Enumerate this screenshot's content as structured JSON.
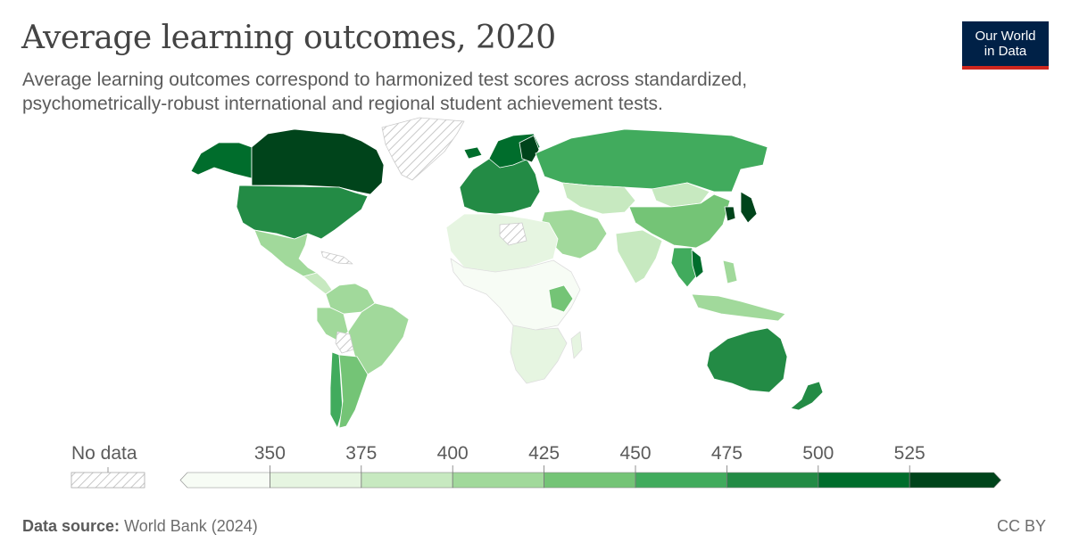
{
  "header": {
    "title": "Average learning outcomes, 2020",
    "subtitle": "Average learning outcomes correspond to harmonized test scores across standardized, psychometrically-robust international and regional student achievement tests."
  },
  "logo": {
    "line1": "Our World",
    "line2": "in Data"
  },
  "legend": {
    "no_data_label": "No data",
    "ticks": [
      "350",
      "375",
      "400",
      "425",
      "450",
      "475",
      "500",
      "525"
    ],
    "bins": [
      {
        "range": "<350",
        "color": "#f7fcf5"
      },
      {
        "range": "350-375",
        "color": "#e6f5e1"
      },
      {
        "range": "375-400",
        "color": "#c7e9c0"
      },
      {
        "range": "400-425",
        "color": "#a1d99b"
      },
      {
        "range": "425-450",
        "color": "#74c476"
      },
      {
        "range": "450-475",
        "color": "#41ab5d"
      },
      {
        "range": "475-500",
        "color": "#238b45"
      },
      {
        "range": "500-525",
        "color": "#006d2c"
      },
      {
        "range": ">525",
        "color": "#00441b"
      }
    ]
  },
  "footer": {
    "source_label": "Data source:",
    "source_value": "World Bank (2024)",
    "license": "CC BY"
  }
}
